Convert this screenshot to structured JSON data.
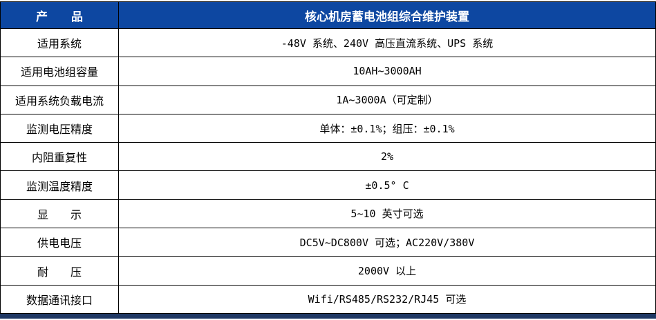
{
  "table": {
    "header": {
      "label": "产　　品",
      "title": "核心机房蓄电池组综合维护装置"
    },
    "rows": [
      {
        "label": "适用系统",
        "value": "-48V 系统、240V 高压直流系统、UPS 系统"
      },
      {
        "label": "适用电池组容量",
        "value": "10AH~3000AH"
      },
      {
        "label": "适用系统负载电流",
        "value": "1A~3000A（可定制）"
      },
      {
        "label": "监测电压精度",
        "value": "单体：±0.1%；组压：±0.1%"
      },
      {
        "label": "内阻重复性",
        "value": "2%"
      },
      {
        "label": "监测温度精度",
        "value": "±0.5° C"
      },
      {
        "label": "显　　示",
        "value": "5~10 英寸可选"
      },
      {
        "label": "供电电压",
        "value": "DC5V~DC800V 可选；AC220V/380V"
      },
      {
        "label": "耐　　压",
        "value": "2000V 以上"
      },
      {
        "label": "数据通讯接口",
        "value": "Wifi/RS485/RS232/RJ45 可选"
      }
    ],
    "colors": {
      "header_bg": "#0D47A1",
      "header_text": "#FFFFFF",
      "footer_bar": "#1F3864",
      "border": "#000000",
      "body_text": "#000000"
    }
  }
}
